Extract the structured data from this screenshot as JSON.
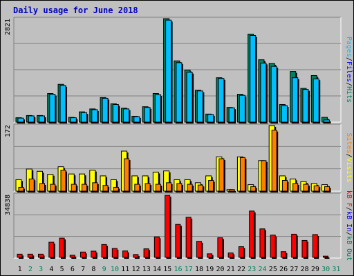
{
  "title": "Daily usage for June 2018",
  "colors": {
    "hits": "#00805c",
    "files": "#00bfff",
    "pages": "#00bfff",
    "sites": "#ff8000",
    "visits": "#ffff00",
    "kbf": "#ff0000",
    "kbin": "#0000ff",
    "kbout": "#00805c",
    "axis_weekday": "#000000",
    "axis_weekend": "#00805c",
    "panel_bg": "#c0c0c0",
    "gridline": "#808080"
  },
  "chart_data": [
    {
      "type": "bar",
      "name": "hits-files-pages",
      "ymax_label": "2821",
      "ylim": [
        0,
        2821
      ],
      "categories": [
        "1",
        "2",
        "3",
        "4",
        "5",
        "6",
        "7",
        "8",
        "9",
        "10",
        "11",
        "12",
        "13",
        "14",
        "15",
        "16",
        "17",
        "18",
        "19",
        "20",
        "21",
        "22",
        "23",
        "24",
        "25",
        "26",
        "27",
        "28",
        "29",
        "30",
        "31"
      ],
      "legend": [
        {
          "label": "Pages",
          "color": "#00bfff"
        },
        {
          "label": "/",
          "color": "#000000"
        },
        {
          "label": "Files",
          "color": "#0000ff"
        },
        {
          "label": "/",
          "color": "#000000"
        },
        {
          "label": "Hits",
          "color": "#00805c"
        }
      ],
      "series": [
        {
          "name": "Hits",
          "values": [
            120,
            180,
            180,
            780,
            1030,
            130,
            280,
            360,
            670,
            500,
            380,
            160,
            420,
            780,
            2821,
            1670,
            1420,
            870,
            220,
            1210,
            400,
            760,
            2400,
            1700,
            1600,
            480,
            1380,
            920,
            1270,
            130,
            0
          ]
        },
        {
          "name": "Files",
          "values": [
            110,
            170,
            170,
            760,
            1000,
            120,
            260,
            340,
            650,
            480,
            360,
            150,
            400,
            750,
            2780,
            1620,
            1360,
            850,
            210,
            1190,
            390,
            730,
            2360,
            1610,
            1520,
            450,
            1210,
            890,
            1180,
            60,
            0
          ]
        }
      ]
    },
    {
      "type": "bar",
      "name": "visits-sites",
      "ymax_label": "172",
      "ylim": [
        0,
        172
      ],
      "categories": [
        "1",
        "2",
        "3",
        "4",
        "5",
        "6",
        "7",
        "8",
        "9",
        "10",
        "11",
        "12",
        "13",
        "14",
        "15",
        "16",
        "17",
        "18",
        "19",
        "20",
        "21",
        "22",
        "23",
        "24",
        "25",
        "26",
        "27",
        "28",
        "29",
        "30",
        "31"
      ],
      "legend": [
        {
          "label": "Sites",
          "color": "#ff8000"
        },
        {
          "label": "/",
          "color": "#000000"
        },
        {
          "label": "Visits",
          "color": "#ffff00"
        }
      ],
      "series": [
        {
          "name": "Visits",
          "values": [
            30,
            58,
            52,
            44,
            64,
            45,
            45,
            55,
            40,
            30,
            105,
            40,
            40,
            50,
            53,
            30,
            30,
            22,
            40,
            90,
            4,
            90,
            17,
            80,
            172,
            40,
            32,
            25,
            20,
            17,
            0
          ]
        },
        {
          "name": "Sites",
          "values": [
            10,
            32,
            20,
            18,
            55,
            18,
            18,
            22,
            15,
            10,
            85,
            18,
            20,
            18,
            22,
            20,
            18,
            16,
            28,
            85,
            4,
            88,
            12,
            80,
            160,
            28,
            20,
            18,
            14,
            12,
            0
          ]
        }
      ]
    },
    {
      "type": "bar",
      "name": "kbytes",
      "ymax_label": "34838",
      "ylim": [
        0,
        34838
      ],
      "categories": [
        "1",
        "2",
        "3",
        "4",
        "5",
        "6",
        "7",
        "8",
        "9",
        "10",
        "11",
        "12",
        "13",
        "14",
        "15",
        "16",
        "17",
        "18",
        "19",
        "20",
        "21",
        "22",
        "23",
        "24",
        "25",
        "26",
        "27",
        "28",
        "29",
        "30",
        "31"
      ],
      "legend": [
        {
          "label": "kB F",
          "color": "#ff0000"
        },
        {
          "label": "/",
          "color": "#000000"
        },
        {
          "label": "kB In",
          "color": "#0000ff"
        },
        {
          "label": "/",
          "color": "#000000"
        },
        {
          "label": "kB Out",
          "color": "#00805c"
        }
      ],
      "series": [
        {
          "name": "kB F",
          "values": [
            1800,
            1800,
            1800,
            8500,
            10800,
            1200,
            3000,
            3500,
            7200,
            5000,
            3600,
            1600,
            4800,
            11500,
            34838,
            18500,
            22500,
            9000,
            2000,
            11000,
            2500,
            6000,
            26000,
            16000,
            12500,
            3200,
            13000,
            9500,
            12800,
            700,
            0
          ]
        }
      ]
    }
  ],
  "x_axis": {
    "labels": [
      "1",
      "2",
      "3",
      "4",
      "5",
      "6",
      "7",
      "8",
      "9",
      "10",
      "11",
      "12",
      "13",
      "14",
      "15",
      "16",
      "17",
      "18",
      "19",
      "20",
      "21",
      "22",
      "23",
      "24",
      "25",
      "26",
      "27",
      "28",
      "29",
      "30",
      "31"
    ],
    "weekend": [
      false,
      true,
      true,
      false,
      false,
      false,
      false,
      false,
      true,
      true,
      false,
      false,
      false,
      false,
      false,
      true,
      true,
      false,
      false,
      false,
      false,
      false,
      true,
      true,
      false,
      false,
      false,
      false,
      false,
      true,
      true
    ]
  }
}
